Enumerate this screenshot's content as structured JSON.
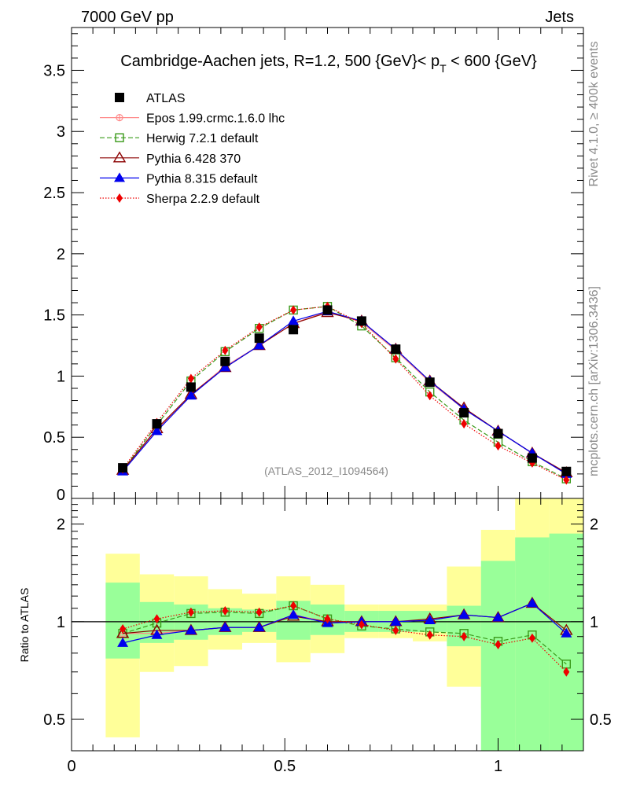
{
  "header": {
    "left": "7000 GeV pp",
    "right": "Jets",
    "side_top": "Rivet 4.1.0, ≥ 400k events",
    "side_bottom": "mcplots.cern.ch [arXiv:1306.3436]"
  },
  "chart_data": {
    "type": "line",
    "title": "Cambridge-Aachen jets, R=1.2,  500 {GeV}< p_T < 600 {GeV}",
    "title_main": "Cambridge-Aachen jets, R=1.2,  500 {GeV}< p",
    "title_sub": "T",
    "title_end": " < 600 {GeV}",
    "watermark": "(ATLAS_2012_I1094564)",
    "xlabel": "",
    "ylabel_main": "",
    "ylabel_ratio": "Ratio to ATLAS",
    "xlim": [
      0,
      1.2
    ],
    "ylim_main": [
      0,
      3.85
    ],
    "ylim_ratio": [
      0.4,
      2.4
    ],
    "ratio_scale": "log",
    "x_ticks": [
      {
        "v": 0,
        "label": "0"
      },
      {
        "v": 0.5,
        "label": "0.5"
      },
      {
        "v": 1,
        "label": "1"
      }
    ],
    "y_ticks_main": [
      {
        "v": 0,
        "label": "0"
      },
      {
        "v": 0.5,
        "label": "0.5"
      },
      {
        "v": 1,
        "label": "1"
      },
      {
        "v": 1.5,
        "label": "1.5"
      },
      {
        "v": 2,
        "label": "2"
      },
      {
        "v": 2.5,
        "label": "2.5"
      },
      {
        "v": 3,
        "label": "3"
      },
      {
        "v": 3.5,
        "label": "3.5"
      }
    ],
    "y_ticks_ratio": [
      {
        "v": 0.5,
        "label": "0.5"
      },
      {
        "v": 1,
        "label": "1"
      },
      {
        "v": 2,
        "label": "2"
      }
    ],
    "x": [
      0.12,
      0.2,
      0.28,
      0.36,
      0.44,
      0.52,
      0.6,
      0.68,
      0.76,
      0.84,
      0.92,
      1.0,
      1.08,
      1.16
    ],
    "bin_edges": [
      0.08,
      0.16,
      0.24,
      0.32,
      0.4,
      0.48,
      0.56,
      0.64,
      0.72,
      0.8,
      0.88,
      0.96,
      1.04,
      1.12,
      1.2
    ],
    "ratio_band_green": [
      [
        0.77,
        1.32
      ],
      [
        0.86,
        1.15
      ],
      [
        0.88,
        1.13
      ],
      [
        0.91,
        1.1
      ],
      [
        0.93,
        1.09
      ],
      [
        0.88,
        1.16
      ],
      [
        0.91,
        1.13
      ],
      [
        0.93,
        1.08
      ],
      [
        0.93,
        1.08
      ],
      [
        0.93,
        1.08
      ],
      [
        0.84,
        1.12
      ],
      [
        0.4,
        1.54
      ],
      [
        0.4,
        1.82
      ],
      [
        0.4,
        1.87
      ]
    ],
    "ratio_band_yellow": [
      [
        0.44,
        1.62
      ],
      [
        0.7,
        1.4
      ],
      [
        0.73,
        1.38
      ],
      [
        0.82,
        1.26
      ],
      [
        0.86,
        1.22
      ],
      [
        0.75,
        1.38
      ],
      [
        0.8,
        1.3
      ],
      [
        0.89,
        1.13
      ],
      [
        0.89,
        1.13
      ],
      [
        0.87,
        1.13
      ],
      [
        0.63,
        1.48
      ],
      [
        0.54,
        1.92
      ],
      [
        0.4,
        2.4
      ],
      [
        0.4,
        2.4
      ]
    ],
    "series": [
      {
        "name": "ATLAS",
        "color": "#000000",
        "marker": "square-filled",
        "dash": "none",
        "values": [
          0.25,
          0.61,
          0.91,
          1.12,
          1.31,
          1.38,
          1.54,
          1.45,
          1.22,
          0.95,
          0.7,
          0.53,
          0.33,
          0.22
        ],
        "ratio": null
      },
      {
        "name": "Epos 1.99.crmc.1.6.0 lhc",
        "color": "#ff8a8a",
        "marker": "cross-circle",
        "dash": "solid",
        "values": [
          0.23,
          0.56,
          0.85,
          1.08,
          1.25,
          1.43,
          1.53,
          1.44,
          1.21,
          0.95,
          0.73,
          0.55,
          0.37,
          0.2
        ],
        "ratio": [
          0.92,
          0.92,
          0.94,
          0.96,
          0.96,
          1.05,
          1.0,
          1.0,
          1.0,
          1.01,
          1.05,
          1.03,
          1.14,
          0.92
        ]
      },
      {
        "name": "Herwig 7.2.1 default",
        "color": "#3a9a1a",
        "marker": "square-open",
        "dash": "6,3",
        "values": [
          0.23,
          0.6,
          0.96,
          1.2,
          1.39,
          1.54,
          1.57,
          1.41,
          1.15,
          0.87,
          0.64,
          0.46,
          0.3,
          0.16
        ],
        "ratio": [
          0.92,
          0.99,
          1.06,
          1.07,
          1.06,
          1.12,
          1.02,
          0.97,
          0.95,
          0.93,
          0.92,
          0.87,
          0.91,
          0.74
        ]
      },
      {
        "name": "Pythia 6.428 370",
        "color": "#8b0000",
        "marker": "triangle-open",
        "dash": "solid",
        "values": [
          0.23,
          0.57,
          0.85,
          1.07,
          1.25,
          1.43,
          1.52,
          1.45,
          1.22,
          0.96,
          0.74,
          0.55,
          0.37,
          0.21
        ],
        "ratio": [
          0.92,
          0.94,
          0.94,
          0.96,
          0.96,
          1.04,
          1.0,
          1.0,
          1.0,
          1.02,
          1.05,
          1.03,
          1.14,
          0.94
        ]
      },
      {
        "name": "Pythia 8.315 default",
        "color": "#0000ee",
        "marker": "triangle-filled",
        "dash": "solid",
        "values": [
          0.22,
          0.55,
          0.84,
          1.07,
          1.25,
          1.45,
          1.53,
          1.45,
          1.22,
          0.96,
          0.73,
          0.55,
          0.37,
          0.2
        ],
        "ratio": [
          0.86,
          0.91,
          0.94,
          0.96,
          0.96,
          1.05,
          0.99,
          1.0,
          1.0,
          1.01,
          1.05,
          1.03,
          1.14,
          0.92
        ]
      },
      {
        "name": "Sherpa 2.2.9 default",
        "color": "#ee0000",
        "marker": "diamond-filled",
        "dash": "1.5,2",
        "values": [
          0.24,
          0.62,
          0.98,
          1.21,
          1.4,
          1.54,
          1.57,
          1.43,
          1.14,
          0.84,
          0.61,
          0.43,
          0.29,
          0.15
        ],
        "ratio": [
          0.95,
          1.02,
          1.07,
          1.08,
          1.07,
          1.12,
          1.02,
          0.98,
          0.94,
          0.91,
          0.9,
          0.85,
          0.89,
          0.7
        ]
      }
    ]
  }
}
